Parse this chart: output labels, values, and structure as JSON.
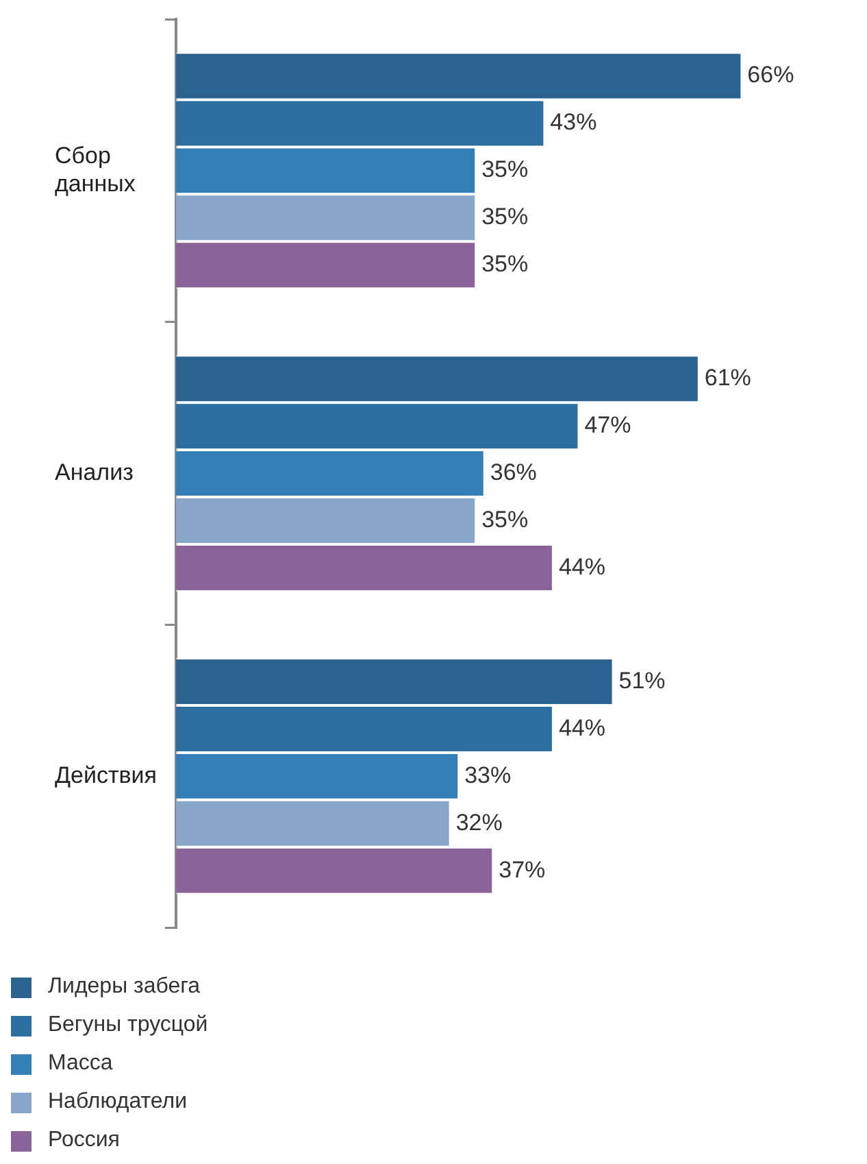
{
  "chart_data": {
    "type": "bar",
    "orientation": "horizontal",
    "categories": [
      "Сбор данных",
      "Анализ",
      "Действия"
    ],
    "series": [
      {
        "name": "Лидеры забега",
        "color": "#2a6290",
        "values": [
          66,
          61,
          51
        ],
        "value_labels": [
          "66%",
          "61%",
          "51%"
        ]
      },
      {
        "name": "Бегуны трусцой",
        "color": "#2b6fa0",
        "values": [
          43,
          47,
          44
        ],
        "value_labels": [
          "43%",
          "47%",
          "44%"
        ]
      },
      {
        "name": "Масса",
        "color": "#337eb6",
        "values": [
          35,
          36,
          33
        ],
        "value_labels": [
          "35%",
          "36%",
          "33%"
        ]
      },
      {
        "name": "Наблюдатели",
        "color": "#88a6ca",
        "values": [
          35,
          35,
          32
        ],
        "value_labels": [
          "35%",
          "35%",
          "32%"
        ]
      },
      {
        "name": "Россия",
        "color": "#8a6399",
        "values": [
          35,
          44,
          37
        ],
        "value_labels": [
          "35%",
          "44%",
          "37%"
        ]
      }
    ],
    "legend": "bottom left"
  }
}
